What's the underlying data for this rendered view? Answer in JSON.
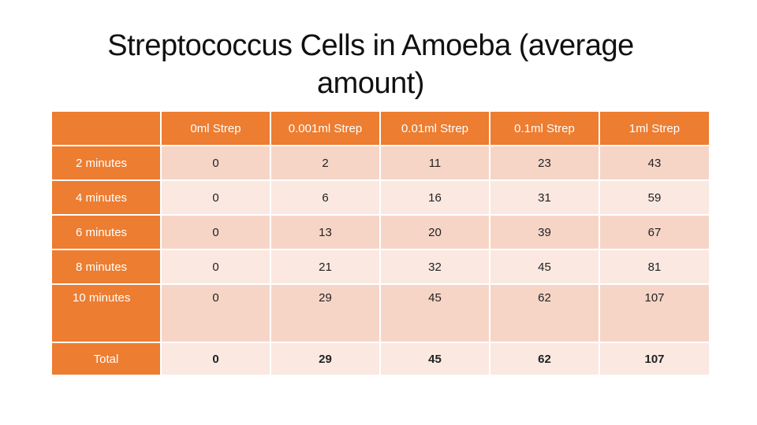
{
  "title": {
    "line1": "Streptococcus Cells in Amoeba (average",
    "line2": "amount)"
  },
  "table": {
    "headers": [
      "",
      "0ml Strep",
      "0.001ml Strep",
      "0.01ml Strep",
      "0.1ml Strep",
      "1ml Strep"
    ],
    "rows": [
      {
        "label": "2 minutes",
        "values": [
          "0",
          "2",
          "11",
          "23",
          "43"
        ]
      },
      {
        "label": "4 minutes",
        "values": [
          "0",
          "6",
          "16",
          "31",
          "59"
        ]
      },
      {
        "label": "6 minutes",
        "values": [
          "0",
          "13",
          "20",
          "39",
          "67"
        ]
      },
      {
        "label": "8 minutes",
        "values": [
          "0",
          "21",
          "32",
          "45",
          "81"
        ]
      },
      {
        "label": "10 minutes",
        "values": [
          "0",
          "29",
          "45",
          "62",
          "107"
        ]
      },
      {
        "label": "Total",
        "values": [
          "0",
          "29",
          "45",
          "62",
          "107"
        ]
      }
    ]
  },
  "colors": {
    "header": "#ED7D31",
    "row_dark": "#F6D5C7",
    "row_light": "#FBE8E1"
  }
}
